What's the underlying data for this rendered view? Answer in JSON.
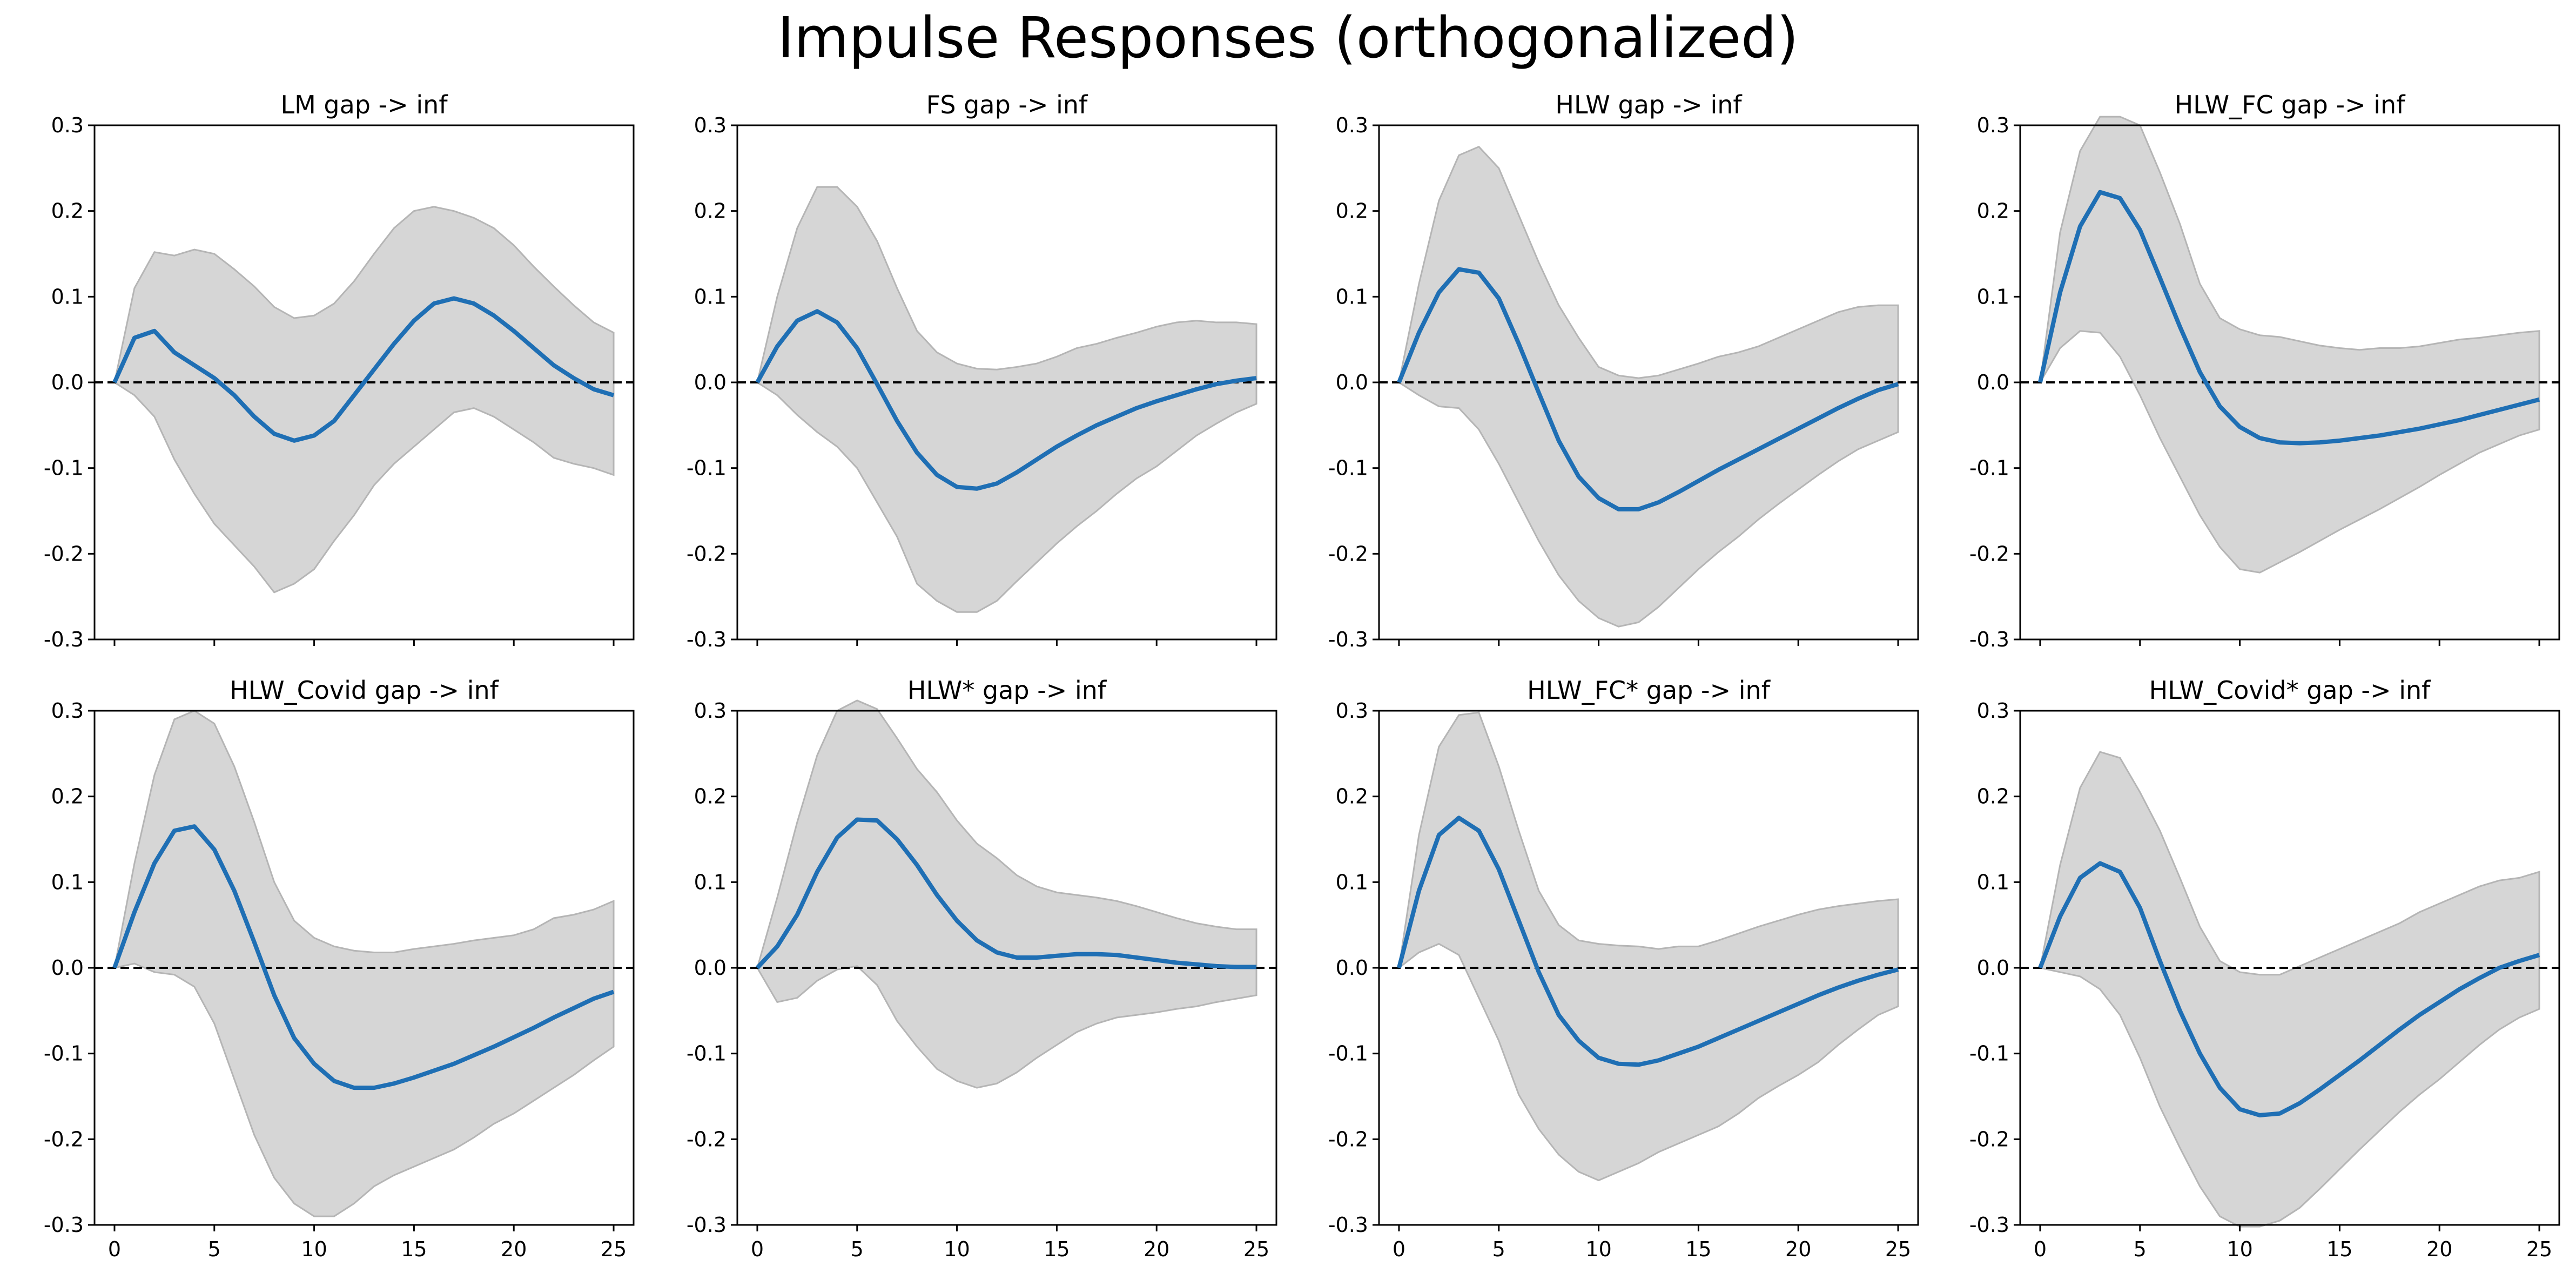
{
  "figure": {
    "title": "Impulse Responses (orthogonalized)"
  },
  "style": {
    "line_color": "#1f6fb4",
    "band_color": "#d6d6d6",
    "band_edge": "#b5b5b5",
    "zero_line": "#000000"
  },
  "axes": {
    "xlim": [
      -1,
      26
    ],
    "ylim": [
      -0.3,
      0.3
    ],
    "xticks": [
      0,
      5,
      10,
      15,
      20,
      25
    ],
    "yticks": [
      -0.3,
      -0.2,
      -0.1,
      0.0,
      0.1,
      0.2,
      0.3
    ],
    "ytick_labels": [
      "-0.3",
      "-0.2",
      "-0.1",
      "0.0",
      "0.1",
      "0.2",
      "0.3"
    ],
    "xtick_labels": [
      "0",
      "5",
      "10",
      "15",
      "20",
      "25"
    ]
  },
  "chart_data": [
    {
      "type": "line",
      "title": "LM gap -> inf",
      "x": [
        0,
        1,
        2,
        3,
        4,
        5,
        6,
        7,
        8,
        9,
        10,
        11,
        12,
        13,
        14,
        15,
        16,
        17,
        18,
        19,
        20,
        21,
        22,
        23,
        24,
        25
      ],
      "y": [
        0,
        0.052,
        0.06,
        0.035,
        0.02,
        0.005,
        -0.015,
        -0.04,
        -0.06,
        -0.068,
        -0.062,
        -0.045,
        -0.015,
        0.015,
        0.045,
        0.072,
        0.092,
        0.098,
        0.092,
        0.078,
        0.06,
        0.04,
        0.02,
        0.005,
        -0.008,
        -0.015
      ],
      "upper": [
        0,
        0.11,
        0.152,
        0.148,
        0.155,
        0.15,
        0.132,
        0.112,
        0.088,
        0.075,
        0.078,
        0.092,
        0.118,
        0.15,
        0.18,
        0.2,
        0.205,
        0.2,
        0.192,
        0.18,
        0.16,
        0.135,
        0.112,
        0.09,
        0.07,
        0.058
      ],
      "lower": [
        0,
        -0.015,
        -0.04,
        -0.09,
        -0.13,
        -0.165,
        -0.19,
        -0.215,
        -0.245,
        -0.235,
        -0.218,
        -0.185,
        -0.155,
        -0.12,
        -0.095,
        -0.075,
        -0.055,
        -0.035,
        -0.03,
        -0.04,
        -0.055,
        -0.07,
        -0.088,
        -0.095,
        -0.1,
        -0.108
      ],
      "xlim": [
        -1,
        26
      ],
      "ylim": [
        -0.3,
        0.3
      ]
    },
    {
      "type": "line",
      "title": "FS gap -> inf",
      "x": [
        0,
        1,
        2,
        3,
        4,
        5,
        6,
        7,
        8,
        9,
        10,
        11,
        12,
        13,
        14,
        15,
        16,
        17,
        18,
        19,
        20,
        21,
        22,
        23,
        24,
        25
      ],
      "y": [
        0,
        0.042,
        0.072,
        0.083,
        0.07,
        0.04,
        -0.002,
        -0.045,
        -0.082,
        -0.108,
        -0.122,
        -0.124,
        -0.118,
        -0.105,
        -0.09,
        -0.075,
        -0.062,
        -0.05,
        -0.04,
        -0.03,
        -0.022,
        -0.015,
        -0.008,
        -0.002,
        0.002,
        0.005
      ],
      "upper": [
        0,
        0.1,
        0.18,
        0.228,
        0.228,
        0.205,
        0.165,
        0.11,
        0.06,
        0.035,
        0.022,
        0.016,
        0.015,
        0.018,
        0.022,
        0.03,
        0.04,
        0.045,
        0.052,
        0.058,
        0.065,
        0.07,
        0.072,
        0.07,
        0.07,
        0.068
      ],
      "lower": [
        0,
        -0.015,
        -0.038,
        -0.058,
        -0.075,
        -0.1,
        -0.14,
        -0.18,
        -0.235,
        -0.255,
        -0.268,
        -0.268,
        -0.255,
        -0.232,
        -0.21,
        -0.188,
        -0.168,
        -0.15,
        -0.13,
        -0.112,
        -0.098,
        -0.08,
        -0.062,
        -0.048,
        -0.035,
        -0.025
      ],
      "xlim": [
        -1,
        26
      ],
      "ylim": [
        -0.3,
        0.3
      ]
    },
    {
      "type": "line",
      "title": "HLW gap -> inf",
      "x": [
        0,
        1,
        2,
        3,
        4,
        5,
        6,
        7,
        8,
        9,
        10,
        11,
        12,
        13,
        14,
        15,
        16,
        17,
        18,
        19,
        20,
        21,
        22,
        23,
        24,
        25
      ],
      "y": [
        0,
        0.058,
        0.105,
        0.132,
        0.128,
        0.098,
        0.045,
        -0.012,
        -0.068,
        -0.11,
        -0.135,
        -0.148,
        -0.148,
        -0.14,
        -0.128,
        -0.115,
        -0.102,
        -0.09,
        -0.078,
        -0.066,
        -0.054,
        -0.042,
        -0.03,
        -0.019,
        -0.009,
        -0.002
      ],
      "upper": [
        0,
        0.115,
        0.212,
        0.265,
        0.275,
        0.25,
        0.195,
        0.14,
        0.09,
        0.052,
        0.018,
        0.008,
        0.005,
        0.008,
        0.015,
        0.022,
        0.03,
        0.035,
        0.042,
        0.052,
        0.062,
        0.072,
        0.082,
        0.088,
        0.09,
        0.09
      ],
      "lower": [
        0,
        -0.015,
        -0.028,
        -0.03,
        -0.055,
        -0.095,
        -0.14,
        -0.185,
        -0.225,
        -0.255,
        -0.275,
        -0.285,
        -0.28,
        -0.262,
        -0.24,
        -0.218,
        -0.198,
        -0.18,
        -0.16,
        -0.142,
        -0.125,
        -0.108,
        -0.092,
        -0.078,
        -0.068,
        -0.058
      ],
      "xlim": [
        -1,
        26
      ],
      "ylim": [
        -0.3,
        0.3
      ]
    },
    {
      "type": "line",
      "title": "HLW_FC gap -> inf",
      "x": [
        0,
        1,
        2,
        3,
        4,
        5,
        6,
        7,
        8,
        9,
        10,
        11,
        12,
        13,
        14,
        15,
        16,
        17,
        18,
        19,
        20,
        21,
        22,
        23,
        24,
        25
      ],
      "y": [
        0,
        0.105,
        0.182,
        0.222,
        0.215,
        0.178,
        0.122,
        0.065,
        0.012,
        -0.028,
        -0.052,
        -0.065,
        -0.07,
        -0.071,
        -0.07,
        -0.068,
        -0.065,
        -0.062,
        -0.058,
        -0.054,
        -0.049,
        -0.044,
        -0.038,
        -0.032,
        -0.026,
        -0.02
      ],
      "upper": [
        0,
        0.175,
        0.27,
        0.31,
        0.31,
        0.3,
        0.245,
        0.185,
        0.115,
        0.075,
        0.062,
        0.055,
        0.053,
        0.048,
        0.043,
        0.04,
        0.038,
        0.04,
        0.04,
        0.042,
        0.046,
        0.05,
        0.052,
        0.055,
        0.058,
        0.06
      ],
      "lower": [
        0,
        0.04,
        0.06,
        0.058,
        0.03,
        -0.015,
        -0.065,
        -0.11,
        -0.155,
        -0.192,
        -0.218,
        -0.222,
        -0.21,
        -0.198,
        -0.185,
        -0.172,
        -0.16,
        -0.148,
        -0.135,
        -0.122,
        -0.108,
        -0.095,
        -0.082,
        -0.072,
        -0.062,
        -0.055
      ],
      "xlim": [
        -1,
        26
      ],
      "ylim": [
        -0.3,
        0.3
      ]
    },
    {
      "type": "line",
      "title": "HLW_Covid gap -> inf",
      "x": [
        0,
        1,
        2,
        3,
        4,
        5,
        6,
        7,
        8,
        9,
        10,
        11,
        12,
        13,
        14,
        15,
        16,
        17,
        18,
        19,
        20,
        21,
        22,
        23,
        24,
        25
      ],
      "y": [
        0,
        0.065,
        0.122,
        0.16,
        0.165,
        0.138,
        0.09,
        0.03,
        -0.032,
        -0.082,
        -0.112,
        -0.132,
        -0.14,
        -0.14,
        -0.135,
        -0.128,
        -0.12,
        -0.112,
        -0.102,
        -0.092,
        -0.081,
        -0.07,
        -0.058,
        -0.047,
        -0.036,
        -0.028
      ],
      "upper": [
        0,
        0.122,
        0.225,
        0.29,
        0.3,
        0.285,
        0.235,
        0.17,
        0.1,
        0.055,
        0.035,
        0.025,
        0.02,
        0.018,
        0.018,
        0.022,
        0.025,
        0.028,
        0.032,
        0.035,
        0.038,
        0.045,
        0.058,
        0.062,
        0.068,
        0.078
      ],
      "lower": [
        0,
        0.005,
        -0.005,
        -0.008,
        -0.022,
        -0.065,
        -0.13,
        -0.195,
        -0.245,
        -0.275,
        -0.29,
        -0.29,
        -0.275,
        -0.255,
        -0.242,
        -0.232,
        -0.222,
        -0.212,
        -0.198,
        -0.182,
        -0.17,
        -0.155,
        -0.14,
        -0.125,
        -0.108,
        -0.092
      ],
      "xlim": [
        -1,
        26
      ],
      "ylim": [
        -0.3,
        0.3
      ]
    },
    {
      "type": "line",
      "title": "HLW* gap -> inf",
      "x": [
        0,
        1,
        2,
        3,
        4,
        5,
        6,
        7,
        8,
        9,
        10,
        11,
        12,
        13,
        14,
        15,
        16,
        17,
        18,
        19,
        20,
        21,
        22,
        23,
        24,
        25
      ],
      "y": [
        0,
        0.025,
        0.062,
        0.112,
        0.152,
        0.173,
        0.172,
        0.15,
        0.12,
        0.085,
        0.055,
        0.032,
        0.018,
        0.012,
        0.012,
        0.014,
        0.016,
        0.016,
        0.015,
        0.012,
        0.009,
        0.006,
        0.004,
        0.002,
        0.001,
        0.001
      ],
      "upper": [
        0,
        0.082,
        0.17,
        0.248,
        0.3,
        0.312,
        0.302,
        0.268,
        0.232,
        0.205,
        0.172,
        0.145,
        0.128,
        0.108,
        0.095,
        0.088,
        0.085,
        0.082,
        0.078,
        0.072,
        0.065,
        0.058,
        0.052,
        0.048,
        0.045,
        0.045
      ],
      "lower": [
        0,
        -0.04,
        -0.035,
        -0.015,
        -0.002,
        0.002,
        -0.02,
        -0.062,
        -0.092,
        -0.118,
        -0.132,
        -0.14,
        -0.135,
        -0.122,
        -0.105,
        -0.09,
        -0.075,
        -0.065,
        -0.058,
        -0.055,
        -0.052,
        -0.048,
        -0.045,
        -0.04,
        -0.036,
        -0.032
      ],
      "xlim": [
        -1,
        26
      ],
      "ylim": [
        -0.3,
        0.3
      ]
    },
    {
      "type": "line",
      "title": "HLW_FC* gap -> inf",
      "x": [
        0,
        1,
        2,
        3,
        4,
        5,
        6,
        7,
        8,
        9,
        10,
        11,
        12,
        13,
        14,
        15,
        16,
        17,
        18,
        19,
        20,
        21,
        22,
        23,
        24,
        25
      ],
      "y": [
        0,
        0.09,
        0.155,
        0.175,
        0.16,
        0.115,
        0.055,
        -0.005,
        -0.055,
        -0.085,
        -0.105,
        -0.112,
        -0.113,
        -0.108,
        -0.1,
        -0.092,
        -0.082,
        -0.072,
        -0.062,
        -0.052,
        -0.042,
        -0.032,
        -0.023,
        -0.015,
        -0.008,
        -0.002
      ],
      "upper": [
        0,
        0.155,
        0.258,
        0.295,
        0.298,
        0.235,
        0.16,
        0.09,
        0.05,
        0.032,
        0.028,
        0.026,
        0.025,
        0.022,
        0.025,
        0.025,
        0.032,
        0.04,
        0.048,
        0.055,
        0.062,
        0.068,
        0.072,
        0.075,
        0.078,
        0.08
      ],
      "lower": [
        0,
        0.018,
        0.028,
        0.015,
        -0.035,
        -0.085,
        -0.148,
        -0.188,
        -0.218,
        -0.238,
        -0.248,
        -0.238,
        -0.228,
        -0.215,
        -0.205,
        -0.195,
        -0.185,
        -0.17,
        -0.152,
        -0.138,
        -0.125,
        -0.11,
        -0.09,
        -0.072,
        -0.055,
        -0.045
      ],
      "xlim": [
        -1,
        26
      ],
      "ylim": [
        -0.3,
        0.3
      ]
    },
    {
      "type": "line",
      "title": "HLW_Covid* gap -> inf",
      "x": [
        0,
        1,
        2,
        3,
        4,
        5,
        6,
        7,
        8,
        9,
        10,
        11,
        12,
        13,
        14,
        15,
        16,
        17,
        18,
        19,
        20,
        21,
        22,
        23,
        24,
        25
      ],
      "y": [
        0,
        0.06,
        0.105,
        0.122,
        0.112,
        0.07,
        0.008,
        -0.05,
        -0.1,
        -0.14,
        -0.165,
        -0.172,
        -0.17,
        -0.158,
        -0.142,
        -0.125,
        -0.108,
        -0.09,
        -0.072,
        -0.055,
        -0.04,
        -0.025,
        -0.012,
        0.0,
        0.008,
        0.015
      ],
      "upper": [
        0,
        0.12,
        0.21,
        0.252,
        0.245,
        0.205,
        0.16,
        0.105,
        0.048,
        0.008,
        -0.005,
        -0.008,
        -0.008,
        0.002,
        0.012,
        0.022,
        0.032,
        0.042,
        0.052,
        0.065,
        0.075,
        0.085,
        0.095,
        0.102,
        0.105,
        0.112
      ],
      "lower": [
        0,
        -0.005,
        -0.01,
        -0.025,
        -0.055,
        -0.105,
        -0.162,
        -0.21,
        -0.255,
        -0.29,
        -0.302,
        -0.302,
        -0.295,
        -0.28,
        -0.258,
        -0.235,
        -0.212,
        -0.19,
        -0.168,
        -0.148,
        -0.13,
        -0.11,
        -0.09,
        -0.072,
        -0.058,
        -0.048
      ],
      "xlim": [
        -1,
        26
      ],
      "ylim": [
        -0.3,
        0.3
      ]
    }
  ]
}
